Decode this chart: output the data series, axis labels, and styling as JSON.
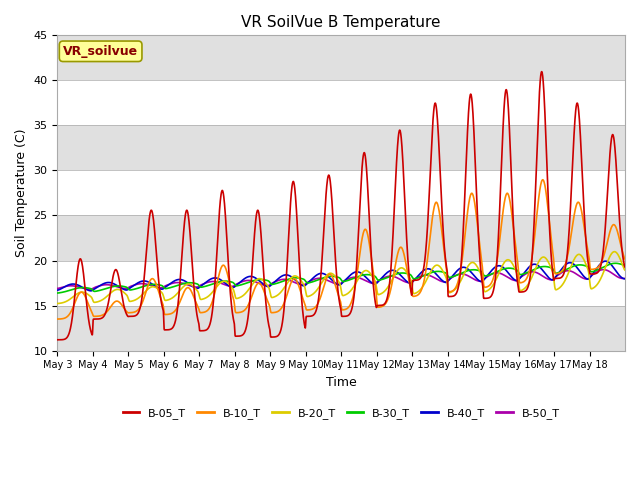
{
  "title": "VR SoilVue B Temperature",
  "ylabel": "Soil Temperature (C)",
  "xlabel": "Time",
  "ylim": [
    10,
    45
  ],
  "background_color": "#ffffff",
  "plot_bg_color": "#e0e0e0",
  "legend_label": "VR_soilvue",
  "lines": {
    "B-05_T": {
      "color": "#cc0000",
      "lw": 1.2
    },
    "B-10_T": {
      "color": "#ff8800",
      "lw": 1.2
    },
    "B-20_T": {
      "color": "#ddcc00",
      "lw": 1.2
    },
    "B-30_T": {
      "color": "#00cc00",
      "lw": 1.2
    },
    "B-40_T": {
      "color": "#0000cc",
      "lw": 1.2
    },
    "B-50_T": {
      "color": "#aa00aa",
      "lw": 1.2
    }
  },
  "xtick_labels": [
    "May 3",
    "May 4",
    "May 5",
    "May 6",
    "May 7",
    "May 8",
    "May 9",
    "May 10",
    "May 11",
    "May 12",
    "May 13",
    "May 14",
    "May 15",
    "May 16",
    "May 17",
    "May 18"
  ],
  "ytick_labels": [
    10,
    15,
    20,
    25,
    30,
    35,
    40,
    45
  ],
  "n_days": 16,
  "samples_per_day": 144,
  "peak_vals_05": [
    20.2,
    19.0,
    25.6,
    25.6,
    27.8,
    25.6,
    28.8,
    29.5,
    32.0,
    34.5,
    37.5,
    38.5,
    39.0,
    41.0,
    37.5,
    34.0
  ],
  "trough_vals_05": [
    11.2,
    13.5,
    13.8,
    12.3,
    12.2,
    11.6,
    11.5,
    13.8,
    13.8,
    15.0,
    17.8,
    16.0,
    15.8,
    16.5,
    18.0,
    18.5
  ],
  "peak_vals_10": [
    16.5,
    15.5,
    18.0,
    17.0,
    19.5,
    17.5,
    18.0,
    18.5,
    23.5,
    21.5,
    26.5,
    27.5,
    27.5,
    29.0,
    26.5,
    24.0
  ],
  "trough_vals_10": [
    13.5,
    13.8,
    14.2,
    14.0,
    14.2,
    14.2,
    14.2,
    14.5,
    14.5,
    14.8,
    16.0,
    16.5,
    17.0,
    17.5,
    18.5,
    19.0
  ]
}
